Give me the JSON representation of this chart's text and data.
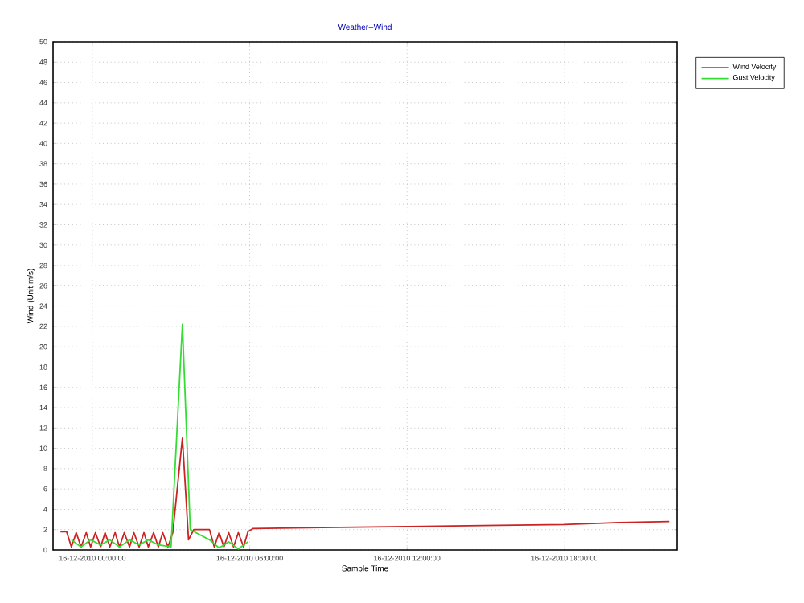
{
  "chart_data": {
    "type": "line",
    "title": "Weather--Wind",
    "xlabel": "Sample Time",
    "ylabel": "Wind (Unit:m/s)",
    "xlim": [
      "2010-12-15T22:30",
      "2010-12-16T22:18"
    ],
    "ylim": [
      0,
      50
    ],
    "xticks": [
      {
        "value": "2010-12-16T00:00",
        "label": "16-12-2010 00:00:00"
      },
      {
        "value": "2010-12-16T06:00",
        "label": "16-12-2010 06:00:00"
      },
      {
        "value": "2010-12-16T12:00",
        "label": "16-12-2010 12:00:00"
      },
      {
        "value": "2010-12-16T18:00",
        "label": "16-12-2010 18:00:00"
      }
    ],
    "yticks": [
      0,
      2,
      4,
      6,
      8,
      10,
      12,
      14,
      16,
      18,
      20,
      22,
      24,
      26,
      28,
      30,
      32,
      34,
      36,
      38,
      40,
      42,
      44,
      46,
      48,
      50
    ],
    "grid": true,
    "legend": "top right",
    "line_style": "solid",
    "marker": "none",
    "series": [
      {
        "name": "Wind Velocity",
        "color": "#cc2222",
        "x": [
          "2010-12-15T22:47",
          "2010-12-15T23:01",
          "2010-12-15T23:12",
          "2010-12-15T23:23",
          "2010-12-15T23:34",
          "2010-12-15T23:46",
          "2010-12-15T23:56",
          "2010-12-16T00:07",
          "2010-12-16T00:19",
          "2010-12-16T00:29",
          "2010-12-16T00:40",
          "2010-12-16T00:52",
          "2010-12-16T01:02",
          "2010-12-16T01:13",
          "2010-12-16T01:25",
          "2010-12-16T01:35",
          "2010-12-16T01:47",
          "2010-12-16T01:58",
          "2010-12-16T02:08",
          "2010-12-16T02:20",
          "2010-12-16T02:31",
          "2010-12-16T02:41",
          "2010-12-16T02:53",
          "2010-12-16T03:04",
          "2010-12-16T03:26",
          "2010-12-16T03:40",
          "2010-12-16T03:52",
          "2010-12-16T04:28",
          "2010-12-16T04:39",
          "2010-12-16T04:50",
          "2010-12-16T05:01",
          "2010-12-16T05:12",
          "2010-12-16T05:23",
          "2010-12-16T05:34",
          "2010-12-16T05:46",
          "2010-12-16T05:56",
          "2010-12-16T06:07",
          "2010-12-16T08:46",
          "2010-12-16T12:00",
          "2010-12-16T14:54",
          "2010-12-16T18:00",
          "2010-12-16T20:06",
          "2010-12-16T22:00"
        ],
        "values": [
          1.8,
          1.8,
          0.3,
          1.7,
          0.3,
          1.7,
          0.3,
          1.7,
          0.3,
          1.7,
          0.3,
          1.7,
          0.3,
          1.7,
          0.3,
          1.7,
          0.3,
          1.7,
          0.3,
          1.7,
          0.3,
          1.7,
          0.3,
          1.7,
          11,
          1,
          2,
          2,
          0.3,
          1.7,
          0.3,
          1.7,
          0.3,
          1.7,
          0.3,
          1.8,
          2.1,
          2.2,
          2.3,
          2.4,
          2.5,
          2.7,
          2.8
        ]
      },
      {
        "name": "Gust Velocity",
        "color": "#33dd33",
        "x": [
          "2010-12-15T23:12",
          "2010-12-15T23:34",
          "2010-12-15T23:56",
          "2010-12-16T00:19",
          "2010-12-16T00:40",
          "2010-12-16T01:02",
          "2010-12-16T01:25",
          "2010-12-16T01:47",
          "2010-12-16T02:08",
          "2010-12-16T02:31",
          "2010-12-16T03:00",
          "2010-12-16T03:26",
          "2010-12-16T03:44",
          "2010-12-16T04:28",
          "2010-12-16T04:50",
          "2010-12-16T05:12",
          "2010-12-16T05:34",
          "2010-12-16T05:56"
        ],
        "values": [
          1,
          0.3,
          1,
          0.5,
          1,
          0.3,
          1,
          0.5,
          1,
          0.5,
          0.3,
          22.2,
          2,
          1,
          0.2,
          0.8,
          0.1,
          0.8
        ]
      }
    ]
  }
}
